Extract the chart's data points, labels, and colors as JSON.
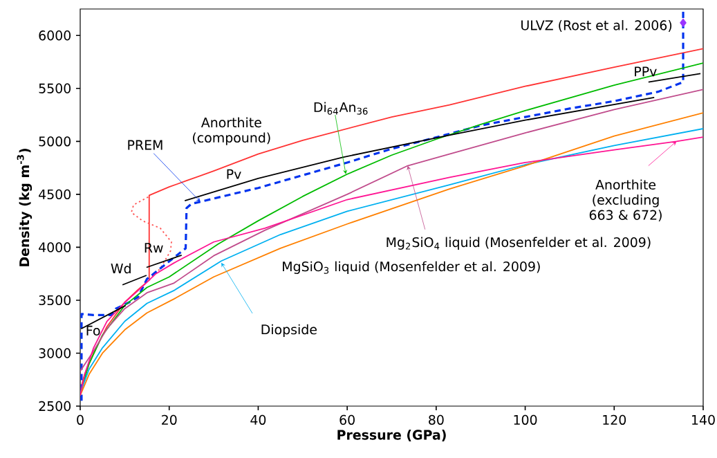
{
  "chart_data": {
    "type": "line",
    "xlabel": "Pressure (GPa)",
    "ylabel": "**Density (kg m$^{-3}$)**",
    "xlim": [
      0,
      140
    ],
    "ylim": [
      2500,
      6250
    ],
    "xticks": [
      0,
      20,
      40,
      60,
      80,
      100,
      120,
      140
    ],
    "yticks": [
      2500,
      3000,
      3500,
      4000,
      4500,
      5000,
      5500,
      6000
    ],
    "grid": false,
    "marker": "none",
    "annotations": [
      {
        "text": "PREM",
        "x": 27,
        "y": 4430
      },
      {
        "text": "Di$_{64}$An$_{36}$",
        "x": 59.7,
        "y": 4690
      },
      {
        "text": "Mg$_{2}$SiO$_{4}$ liquid (Mosenfelder et al. 2009)",
        "x": 73.6,
        "y": 4770
      },
      {
        "text": "Diopside",
        "x": 31.7,
        "y": 3854
      },
      {
        "text": "Anorthite (excluding 663 & 672)",
        "x": 134,
        "y": 5000
      }
    ],
    "series": [
      {
        "name": "Anorthite (compound)",
        "color": "#ff3333",
        "line_style": "solid",
        "x": [
          0,
          1,
          3,
          6,
          10,
          13,
          15.5,
          15.5,
          20,
          24,
          30,
          40,
          50,
          60,
          70,
          83,
          100,
          120,
          140
        ],
        "values": [
          2650,
          2800,
          3000,
          3250,
          3480,
          3600,
          3690,
          4490,
          4570,
          4630,
          4720,
          4880,
          5010,
          5120,
          5230,
          5345,
          5520,
          5700,
          5875
        ]
      },
      {
        "color": "#ff5050",
        "line_style": "dotted",
        "x": [
          15.5,
          18,
          20.3,
          20.5,
          18,
          14,
          11.5,
          12,
          15.5
        ],
        "values": [
          3690,
          3800,
          3965,
          4050,
          4180,
          4250,
          4330,
          4400,
          4480
        ]
      },
      {
        "color": "#0033ee",
        "line_style": "dashed",
        "x": [
          0.3,
          0.3,
          3,
          7,
          8,
          11,
          13,
          15,
          18,
          21,
          23.7,
          23.9,
          25,
          30,
          40,
          50,
          60,
          70,
          82,
          90,
          100,
          110,
          120,
          130,
          135.5,
          135.5
        ],
        "values": [
          2550,
          3370,
          3360,
          3360,
          3420,
          3480,
          3530,
          3700,
          3800,
          3900,
          3990,
          4370,
          4410,
          4460,
          4560,
          4680,
          4800,
          4930,
          5060,
          5150,
          5230,
          5310,
          5380,
          5470,
          5560,
          6250
        ]
      },
      {
        "name": "ULVZ (Rost et al. 2006)",
        "type": "scatter",
        "marker": "diamond",
        "color": "#9933ff",
        "x": [
          135.5
        ],
        "values": [
          6120
        ]
      },
      {
        "color": "#00bb00",
        "line_style": "solid",
        "x": [
          0,
          2,
          5,
          10,
          15,
          20,
          31,
          40,
          50,
          60,
          70,
          80,
          90,
          100,
          120,
          140
        ],
        "values": [
          2620,
          2900,
          3170,
          3450,
          3620,
          3720,
          4030,
          4250,
          4480,
          4690,
          4870,
          5020,
          5160,
          5290,
          5530,
          5740
        ]
      },
      {
        "color": "#c04c8c",
        "line_style": "solid",
        "x": [
          0,
          3,
          6,
          10,
          15,
          21,
          30,
          41.5,
          60,
          73.6,
          83,
          100,
          120,
          140
        ],
        "values": [
          2830,
          3020,
          3230,
          3420,
          3570,
          3660,
          3920,
          4160,
          4500,
          4770,
          4880,
          5080,
          5300,
          5490
        ]
      },
      {
        "color": "#00b0f0",
        "line_style": "solid",
        "x": [
          0,
          2,
          5,
          10,
          15,
          21,
          31.7,
          45,
          60,
          83,
          100,
          120,
          140
        ],
        "values": [
          2620,
          2850,
          3050,
          3300,
          3470,
          3590,
          3870,
          4120,
          4340,
          4590,
          4780,
          4960,
          5120
        ]
      },
      {
        "name": "MgSiO$_{3}$ liquid (Mosenfelder et al. 2009)",
        "color": "#ff8000",
        "line_style": "solid",
        "x": [
          0,
          2,
          5,
          10,
          15,
          21,
          30,
          45,
          60,
          83,
          100,
          120,
          140
        ],
        "values": [
          2600,
          2800,
          3000,
          3220,
          3380,
          3510,
          3720,
          3990,
          4220,
          4550,
          4770,
          5050,
          5270
        ]
      },
      {
        "color": "#ff1493",
        "line_style": "solid",
        "x": [
          0,
          1,
          3,
          6,
          10,
          13,
          17,
          21,
          30,
          41.5,
          60,
          83,
          100,
          120,
          134,
          140
        ],
        "values": [
          2600,
          2800,
          3050,
          3300,
          3480,
          3590,
          3750,
          3850,
          4050,
          4180,
          4450,
          4660,
          4800,
          4920,
          5000,
          5040
        ]
      },
      {
        "name": "Fo",
        "color": "#000000",
        "line_style": "solid",
        "x": [
          0.2,
          10.2
        ],
        "values": [
          3230,
          3450
        ]
      },
      {
        "name": "Wd",
        "color": "#000000",
        "line_style": "solid",
        "x": [
          9.5,
          14.9
        ],
        "values": [
          3645,
          3735
        ]
      },
      {
        "name": "Rw",
        "color": "#000000",
        "line_style": "solid",
        "x": [
          14.9,
          22.8
        ],
        "values": [
          3810,
          3925
        ]
      },
      {
        "name": "Pv",
        "color": "#000000",
        "line_style": "solid",
        "x": [
          23.5,
          40,
          59,
          82,
          100,
          129
        ],
        "values": [
          4440,
          4650,
          4850,
          5050,
          5200,
          5415
        ]
      },
      {
        "name": "PPv",
        "color": "#000000",
        "line_style": "solid",
        "x": [
          127.7,
          139.4
        ],
        "values": [
          5560,
          5640
        ]
      }
    ]
  }
}
